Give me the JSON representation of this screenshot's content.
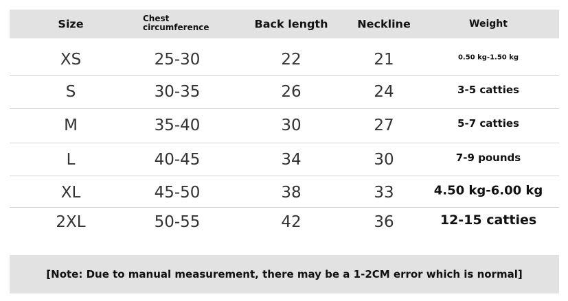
{
  "table": {
    "header": [
      "Size",
      "Chest circumference",
      "Back length",
      "Neckline",
      "Weight"
    ],
    "rows": [
      [
        "XS",
        "25-30",
        "22",
        "21",
        "0.50 kg-1.50 kg"
      ],
      [
        "S",
        "30-35",
        "26",
        "24",
        "3-5 catties"
      ],
      [
        "M",
        "35-40",
        "30",
        "27",
        "5-7 catties"
      ],
      [
        "L",
        "40-45",
        "34",
        "30",
        "7-9 pounds"
      ],
      [
        "XL",
        "45-50",
        "38",
        "33",
        "4.50 kg-6.00 kg"
      ],
      [
        "2XL",
        "50-55",
        "42",
        "36",
        "12-15 catties"
      ]
    ]
  },
  "note": "[Note: Due to manual measurement, there may be a 1-2CM error which is normal]"
}
